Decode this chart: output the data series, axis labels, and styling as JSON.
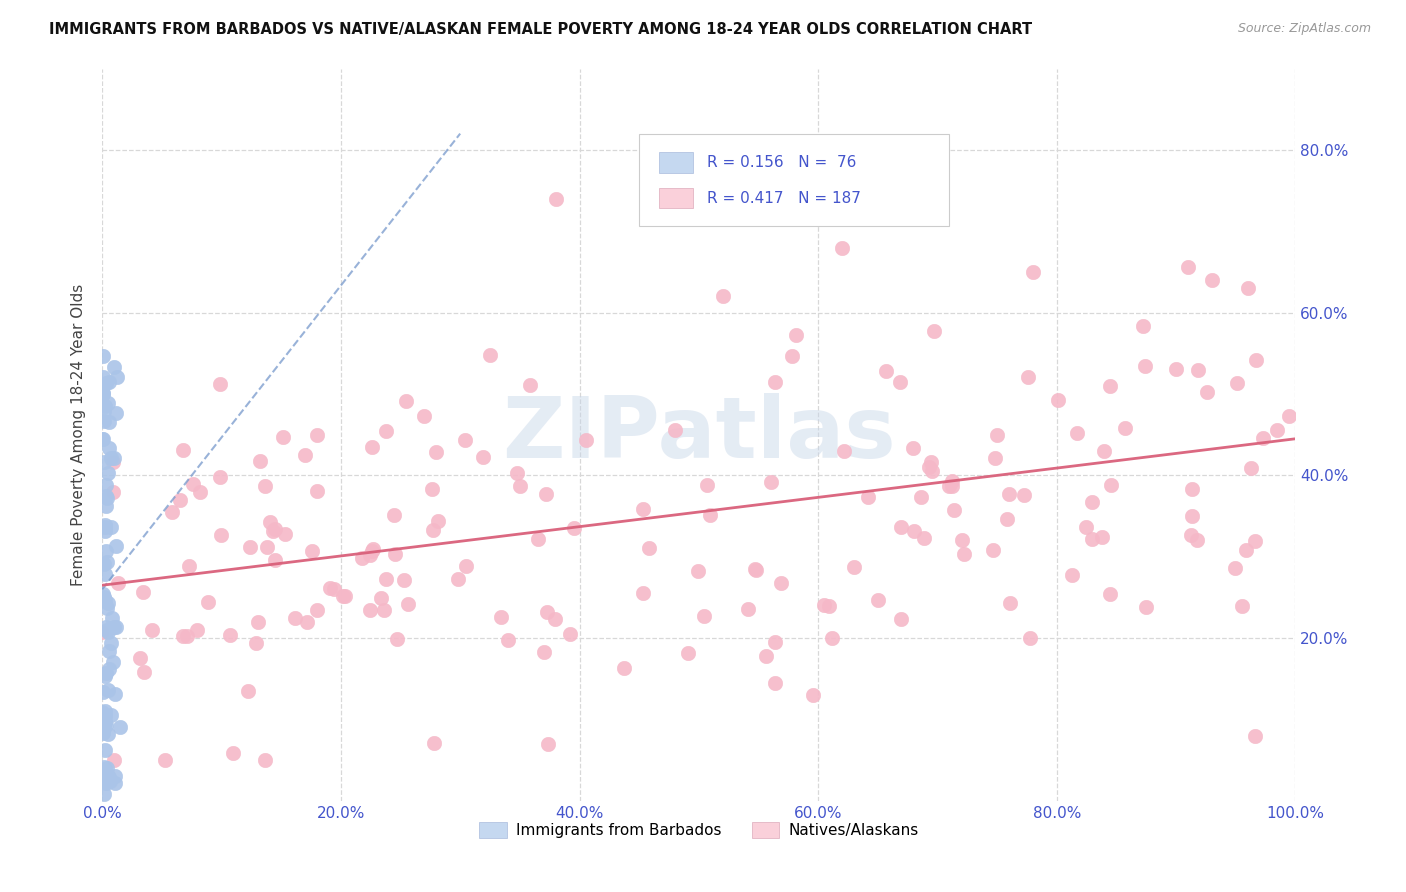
{
  "title": "IMMIGRANTS FROM BARBADOS VS NATIVE/ALASKAN FEMALE POVERTY AMONG 18-24 YEAR OLDS CORRELATION CHART",
  "source": "Source: ZipAtlas.com",
  "ylabel": "Female Poverty Among 18-24 Year Olds",
  "xlim": [
    0,
    1.0
  ],
  "ylim": [
    0,
    0.9
  ],
  "R_blue": 0.156,
  "N_blue": 76,
  "R_pink": 0.417,
  "N_pink": 187,
  "legend_label_blue": "Immigrants from Barbados",
  "legend_label_pink": "Natives/Alaskans",
  "blue_color": "#aac4e8",
  "pink_color": "#f5b8c8",
  "blue_fill_color": "#c5d8f0",
  "pink_fill_color": "#fad0da",
  "blue_line_color": "#7799cc",
  "pink_line_color": "#d9607a",
  "axis_tick_color": "#4455cc",
  "title_color": "#111111",
  "watermark": "ZIPatlas",
  "background_color": "#ffffff",
  "grid_color": "#d8d8d8",
  "yticks": [
    0.2,
    0.4,
    0.6,
    0.8
  ],
  "ytick_labels": [
    "20.0%",
    "40.0%",
    "60.0%",
    "80.0%"
  ],
  "xticks": [
    0.0,
    0.2,
    0.4,
    0.6,
    0.8,
    1.0
  ],
  "xtick_labels": [
    "0.0%",
    "20.0%",
    "40.0%",
    "60.0%",
    "80.0%",
    "100.0%"
  ]
}
